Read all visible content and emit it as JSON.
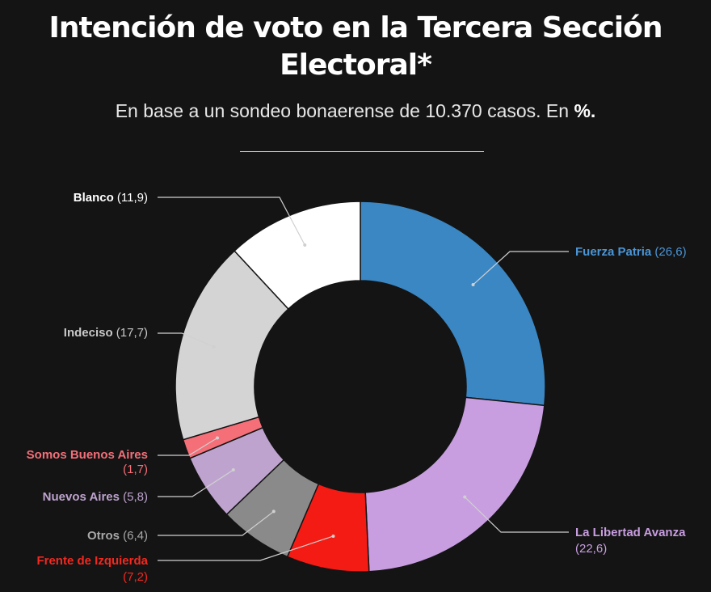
{
  "header": {
    "title_line1": "Intención de voto en la Tercera Sección",
    "title_line2": "Electoral*",
    "subtitle_text": "En base a un sondeo bonaerense de 10.370 casos. En ",
    "subtitle_bold": "%."
  },
  "chart_data": {
    "type": "pie",
    "title": "Intención de voto en la Tercera Sección Electoral*",
    "subtitle": "En base a un sondeo bonaerense de 10.370 casos. En %.",
    "unit": "%",
    "slices": [
      {
        "key": "fuerza-patria",
        "label": "Fuerza Patria",
        "value": 26.6,
        "value_text": "(26,6)",
        "color": "#3a87c4",
        "label_color": "#4a95d6"
      },
      {
        "key": "la-libertad-avanza",
        "label": "La Libertad Avanza",
        "value": 22.6,
        "value_text": "(22,6)",
        "color": "#c89ee0",
        "label_color": "#c89ee0"
      },
      {
        "key": "frente-de-izquierda",
        "label": "Frente de Izquierda",
        "value": 7.2,
        "value_text": "(7,2)",
        "color": "#f41b14",
        "label_color": "#f4281f"
      },
      {
        "key": "otros",
        "label": "Otros",
        "value": 6.4,
        "value_text": "(6,4)",
        "color": "#8a8a8a",
        "label_color": "#a8a8a8"
      },
      {
        "key": "nuevos-aires",
        "label": "Nuevos Aires",
        "value": 5.8,
        "value_text": "(5,8)",
        "color": "#bea3cf",
        "label_color": "#bea3cf"
      },
      {
        "key": "somos-buenos-aires",
        "label": "Somos Buenos Aires",
        "value": 1.7,
        "value_text": "(1,7)",
        "color": "#f46f78",
        "label_color": "#f46f78"
      },
      {
        "key": "indeciso",
        "label": "Indeciso",
        "value": 17.7,
        "value_text": "(17,7)",
        "color": "#d4d4d4",
        "label_color": "#c9c9c9"
      },
      {
        "key": "blanco",
        "label": "Blanco",
        "value": 11.9,
        "value_text": "(11,9)",
        "color": "#ffffff",
        "label_color": "#ffffff"
      }
    ]
  }
}
